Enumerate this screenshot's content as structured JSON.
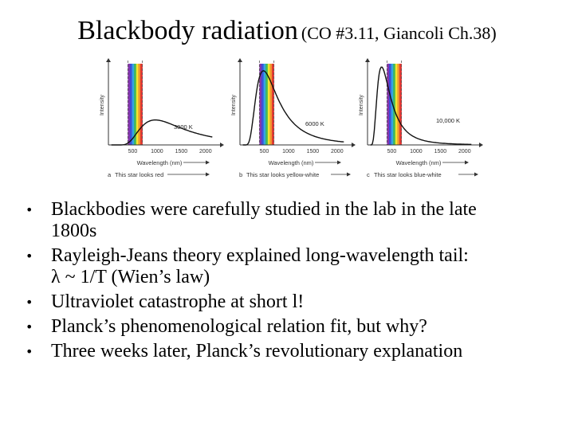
{
  "title": {
    "main": "Blackbody radiation",
    "sub": "(CO #3.11, Giancoli Ch.38)"
  },
  "figure": {
    "panels": [
      {
        "temp": "3000 K",
        "caption_letter": "a",
        "caption": "This star looks red",
        "xlabel": "Wavelength (nm)",
        "ylabel": "Intensity",
        "ticks": [
          "500",
          "1000",
          "1500",
          "2000"
        ]
      },
      {
        "temp": "6000 K",
        "caption_letter": "b",
        "caption": "This star looks yellow-white",
        "xlabel": "Wavelength (nm)",
        "ylabel": "Intensity",
        "ticks": [
          "500",
          "1000",
          "1500",
          "2000"
        ]
      },
      {
        "temp": "10,000 K",
        "caption_letter": "c",
        "caption": "This star looks blue-white",
        "xlabel": "Wavelength (nm)",
        "ylabel": "Intensity",
        "ticks": [
          "500",
          "1000",
          "1500",
          "2000"
        ]
      }
    ],
    "spectrum_colors": [
      "#7a1fa2",
      "#2a3fd6",
      "#1e9be0",
      "#2fb24a",
      "#f2e21a",
      "#f08a1a",
      "#e0231e"
    ]
  },
  "bullets": [
    {
      "line1": "Blackbodies were carefully studied in the lab in the late",
      "line2": "1800s"
    },
    {
      "line1": "Rayleigh-Jeans theory explained long-wavelength tail:",
      "line2": "λ ~ 1/T (Wien’s law)"
    },
    {
      "line1": "Ultraviolet catastrophe at short l!",
      "line2": ""
    },
    {
      "line1": "Planck’s phenomenological relation fit, but why?",
      "line2": ""
    },
    {
      "line1": "Three weeks later, Planck’s revolutionary explanation",
      "line2": ""
    }
  ],
  "bullet_glyph": "•"
}
